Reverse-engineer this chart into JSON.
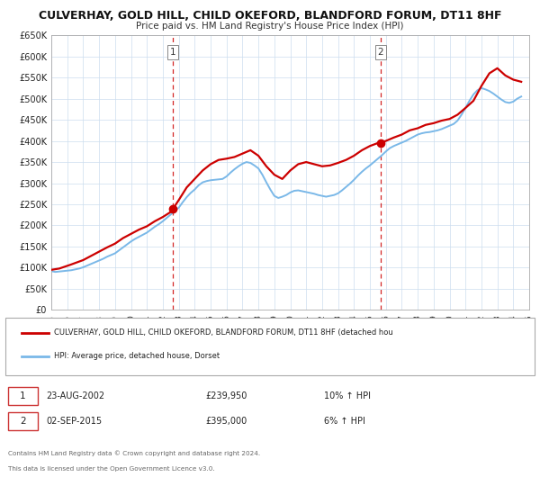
{
  "title": "CULVERHAY, GOLD HILL, CHILD OKEFORD, BLANDFORD FORUM, DT11 8HF",
  "subtitle": "Price paid vs. HM Land Registry's House Price Index (HPI)",
  "xlim": [
    1995,
    2025
  ],
  "ylim": [
    0,
    650000
  ],
  "yticks": [
    0,
    50000,
    100000,
    150000,
    200000,
    250000,
    300000,
    350000,
    400000,
    450000,
    500000,
    550000,
    600000,
    650000
  ],
  "ytick_labels": [
    "£0",
    "£50K",
    "£100K",
    "£150K",
    "£200K",
    "£250K",
    "£300K",
    "£350K",
    "£400K",
    "£450K",
    "£500K",
    "£550K",
    "£600K",
    "£650K"
  ],
  "xticks": [
    1995,
    1996,
    1997,
    1998,
    1999,
    2000,
    2001,
    2002,
    2003,
    2004,
    2005,
    2006,
    2007,
    2008,
    2009,
    2010,
    2011,
    2012,
    2013,
    2014,
    2015,
    2016,
    2017,
    2018,
    2019,
    2020,
    2021,
    2022,
    2023,
    2024,
    2025
  ],
  "hpi_color": "#7ab8e8",
  "price_color": "#cc0000",
  "marker1_x": 2002.65,
  "marker1_y": 239950,
  "marker2_x": 2015.67,
  "marker2_y": 395000,
  "vline1_x": 2002.65,
  "vline2_x": 2015.67,
  "bg_color": "#ffffff",
  "grid_color": "#ccddee",
  "legend_label_price": "CULVERHAY, GOLD HILL, CHILD OKEFORD, BLANDFORD FORUM, DT11 8HF (detached hou",
  "legend_label_hpi": "HPI: Average price, detached house, Dorset",
  "table_row1": [
    "1",
    "23-AUG-2002",
    "£239,950",
    "10% ↑ HPI"
  ],
  "table_row2": [
    "2",
    "02-SEP-2015",
    "£395,000",
    "6% ↑ HPI"
  ],
  "footnote1": "Contains HM Land Registry data © Crown copyright and database right 2024.",
  "footnote2": "This data is licensed under the Open Government Licence v3.0.",
  "hpi_data_x": [
    1995.0,
    1995.25,
    1995.5,
    1995.75,
    1996.0,
    1996.25,
    1996.5,
    1996.75,
    1997.0,
    1997.25,
    1997.5,
    1997.75,
    1998.0,
    1998.25,
    1998.5,
    1998.75,
    1999.0,
    1999.25,
    1999.5,
    1999.75,
    2000.0,
    2000.25,
    2000.5,
    2000.75,
    2001.0,
    2001.25,
    2001.5,
    2001.75,
    2002.0,
    2002.25,
    2002.5,
    2002.75,
    2003.0,
    2003.25,
    2003.5,
    2003.75,
    2004.0,
    2004.25,
    2004.5,
    2004.75,
    2005.0,
    2005.25,
    2005.5,
    2005.75,
    2006.0,
    2006.25,
    2006.5,
    2006.75,
    2007.0,
    2007.25,
    2007.5,
    2007.75,
    2008.0,
    2008.25,
    2008.5,
    2008.75,
    2009.0,
    2009.25,
    2009.5,
    2009.75,
    2010.0,
    2010.25,
    2010.5,
    2010.75,
    2011.0,
    2011.25,
    2011.5,
    2011.75,
    2012.0,
    2012.25,
    2012.5,
    2012.75,
    2013.0,
    2013.25,
    2013.5,
    2013.75,
    2014.0,
    2014.25,
    2014.5,
    2014.75,
    2015.0,
    2015.25,
    2015.5,
    2015.75,
    2016.0,
    2016.25,
    2016.5,
    2016.75,
    2017.0,
    2017.25,
    2017.5,
    2017.75,
    2018.0,
    2018.25,
    2018.5,
    2018.75,
    2019.0,
    2019.25,
    2019.5,
    2019.75,
    2020.0,
    2020.25,
    2020.5,
    2020.75,
    2021.0,
    2021.25,
    2021.5,
    2021.75,
    2022.0,
    2022.25,
    2022.5,
    2022.75,
    2023.0,
    2023.25,
    2023.5,
    2023.75,
    2024.0,
    2024.25,
    2024.5
  ],
  "hpi_data_y": [
    92000,
    90000,
    91000,
    92000,
    93000,
    94000,
    96000,
    98000,
    101000,
    105000,
    109000,
    113000,
    117000,
    121000,
    126000,
    130000,
    134000,
    141000,
    148000,
    155000,
    162000,
    168000,
    173000,
    178000,
    183000,
    190000,
    197000,
    203000,
    210000,
    218000,
    226000,
    234000,
    242000,
    255000,
    267000,
    277000,
    285000,
    295000,
    302000,
    305000,
    307000,
    308000,
    309000,
    310000,
    316000,
    325000,
    333000,
    340000,
    346000,
    350000,
    348000,
    342000,
    335000,
    320000,
    302000,
    285000,
    270000,
    265000,
    268000,
    272000,
    278000,
    282000,
    283000,
    281000,
    279000,
    277000,
    275000,
    272000,
    270000,
    268000,
    270000,
    272000,
    276000,
    283000,
    291000,
    299000,
    308000,
    318000,
    327000,
    335000,
    342000,
    350000,
    358000,
    366000,
    375000,
    383000,
    388000,
    392000,
    396000,
    400000,
    405000,
    410000,
    415000,
    418000,
    420000,
    421000,
    423000,
    425000,
    428000,
    432000,
    436000,
    440000,
    448000,
    462000,
    478000,
    495000,
    510000,
    520000,
    525000,
    522000,
    518000,
    512000,
    505000,
    498000,
    492000,
    490000,
    493000,
    500000,
    505000
  ],
  "price_data_x": [
    1995.0,
    1995.5,
    1996.2,
    1997.0,
    1997.5,
    1998.0,
    1998.5,
    1999.0,
    1999.5,
    2000.0,
    2000.5,
    2001.0,
    2001.5,
    2002.0,
    2002.5,
    2002.65,
    2003.0,
    2003.5,
    2004.0,
    2004.5,
    2005.0,
    2005.5,
    2006.0,
    2006.5,
    2007.0,
    2007.5,
    2008.0,
    2008.5,
    2009.0,
    2009.5,
    2010.0,
    2010.5,
    2011.0,
    2011.5,
    2012.0,
    2012.5,
    2013.0,
    2013.5,
    2014.0,
    2014.5,
    2015.0,
    2015.5,
    2015.67,
    2016.0,
    2016.5,
    2017.0,
    2017.5,
    2018.0,
    2018.5,
    2019.0,
    2019.5,
    2020.0,
    2020.5,
    2021.0,
    2021.5,
    2022.0,
    2022.5,
    2023.0,
    2023.5,
    2024.0,
    2024.5
  ],
  "price_data_y": [
    95000,
    98000,
    107000,
    118000,
    128000,
    138000,
    148000,
    157000,
    170000,
    180000,
    190000,
    198000,
    210000,
    220000,
    232000,
    239950,
    260000,
    290000,
    310000,
    330000,
    345000,
    355000,
    358000,
    362000,
    370000,
    378000,
    365000,
    340000,
    320000,
    310000,
    330000,
    345000,
    350000,
    345000,
    340000,
    342000,
    348000,
    355000,
    365000,
    378000,
    388000,
    395000,
    395000,
    400000,
    408000,
    415000,
    425000,
    430000,
    438000,
    442000,
    448000,
    452000,
    462000,
    478000,
    495000,
    530000,
    560000,
    572000,
    555000,
    545000,
    540000
  ]
}
